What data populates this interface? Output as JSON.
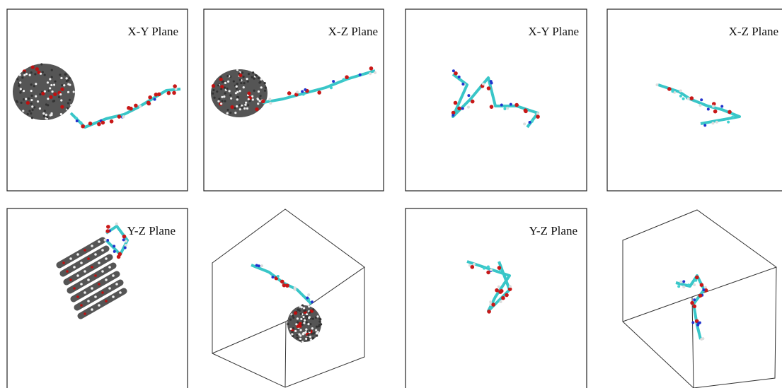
{
  "panels": [
    {
      "label": "X-Y Plane"
    },
    {
      "label": "X-Z Plane"
    },
    {
      "label": "X-Y Plane"
    },
    {
      "label": "X-Z Plane"
    },
    {
      "label": "Y-Z Plane"
    },
    {
      "label": "Y-Z Plane"
    }
  ]
}
